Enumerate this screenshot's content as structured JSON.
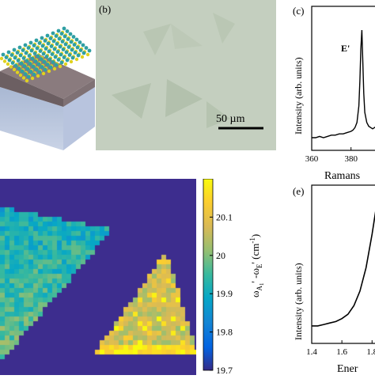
{
  "panel_b": {
    "label": "(b)",
    "scale_bar": "50 µm"
  },
  "panel_c": {
    "label": "(c)",
    "ylabel": "Intensity (arb. units)",
    "xlabel": "Ramans",
    "peak_label": "E'",
    "xticks": [
      "360",
      "380"
    ]
  },
  "panel_e": {
    "label": "(e)",
    "ylabel": "Intensity (arb. units)",
    "xlabel": "Ener",
    "xticks": [
      "1.4",
      "1.6",
      "1.8"
    ]
  },
  "colorbar": {
    "ticks": [
      "20.1",
      "20",
      "19.9",
      "19.8",
      "19.7"
    ],
    "label_main": "ω",
    "label_sub1": "A",
    "label_sub2": "1",
    "label_mid": "' -ω",
    "label_sub3": "E",
    "label_tail": "' (cm",
    "label_exp": "-1",
    "label_end": ")"
  },
  "chart_data": [
    {
      "type": "line",
      "title": "",
      "xlabel": "Ramans",
      "ylabel": "Intensity (arb. units)",
      "xlim": [
        360,
        393
      ],
      "x": [
        360,
        362,
        364,
        366,
        368,
        370,
        372,
        374,
        376,
        378,
        380,
        381,
        382,
        383,
        384,
        384.5,
        385,
        385.5,
        386,
        386.5,
        387,
        388,
        389,
        390,
        391,
        392,
        393
      ],
      "y": [
        0.1,
        0.1,
        0.11,
        0.1,
        0.11,
        0.12,
        0.12,
        0.13,
        0.13,
        0.14,
        0.15,
        0.16,
        0.18,
        0.22,
        0.35,
        0.55,
        0.8,
        0.95,
        0.7,
        0.45,
        0.3,
        0.22,
        0.19,
        0.18,
        0.17,
        0.18,
        0.19
      ],
      "annotations": [
        "E'"
      ]
    },
    {
      "type": "line",
      "title": "",
      "xlabel": "Ener",
      "ylabel": "Intensity (arb. units)",
      "xlim": [
        1.4,
        1.83
      ],
      "x": [
        1.4,
        1.44,
        1.48,
        1.52,
        1.56,
        1.6,
        1.64,
        1.68,
        1.72,
        1.76,
        1.8,
        1.83
      ],
      "y": [
        0.12,
        0.12,
        0.13,
        0.14,
        0.15,
        0.17,
        0.2,
        0.26,
        0.36,
        0.52,
        0.75,
        0.95
      ]
    },
    {
      "type": "heatmap",
      "colorbar_ticks": [
        20.1,
        20.0,
        19.9,
        19.8,
        19.7
      ],
      "colorbar_range": [
        19.7,
        20.2
      ]
    }
  ]
}
